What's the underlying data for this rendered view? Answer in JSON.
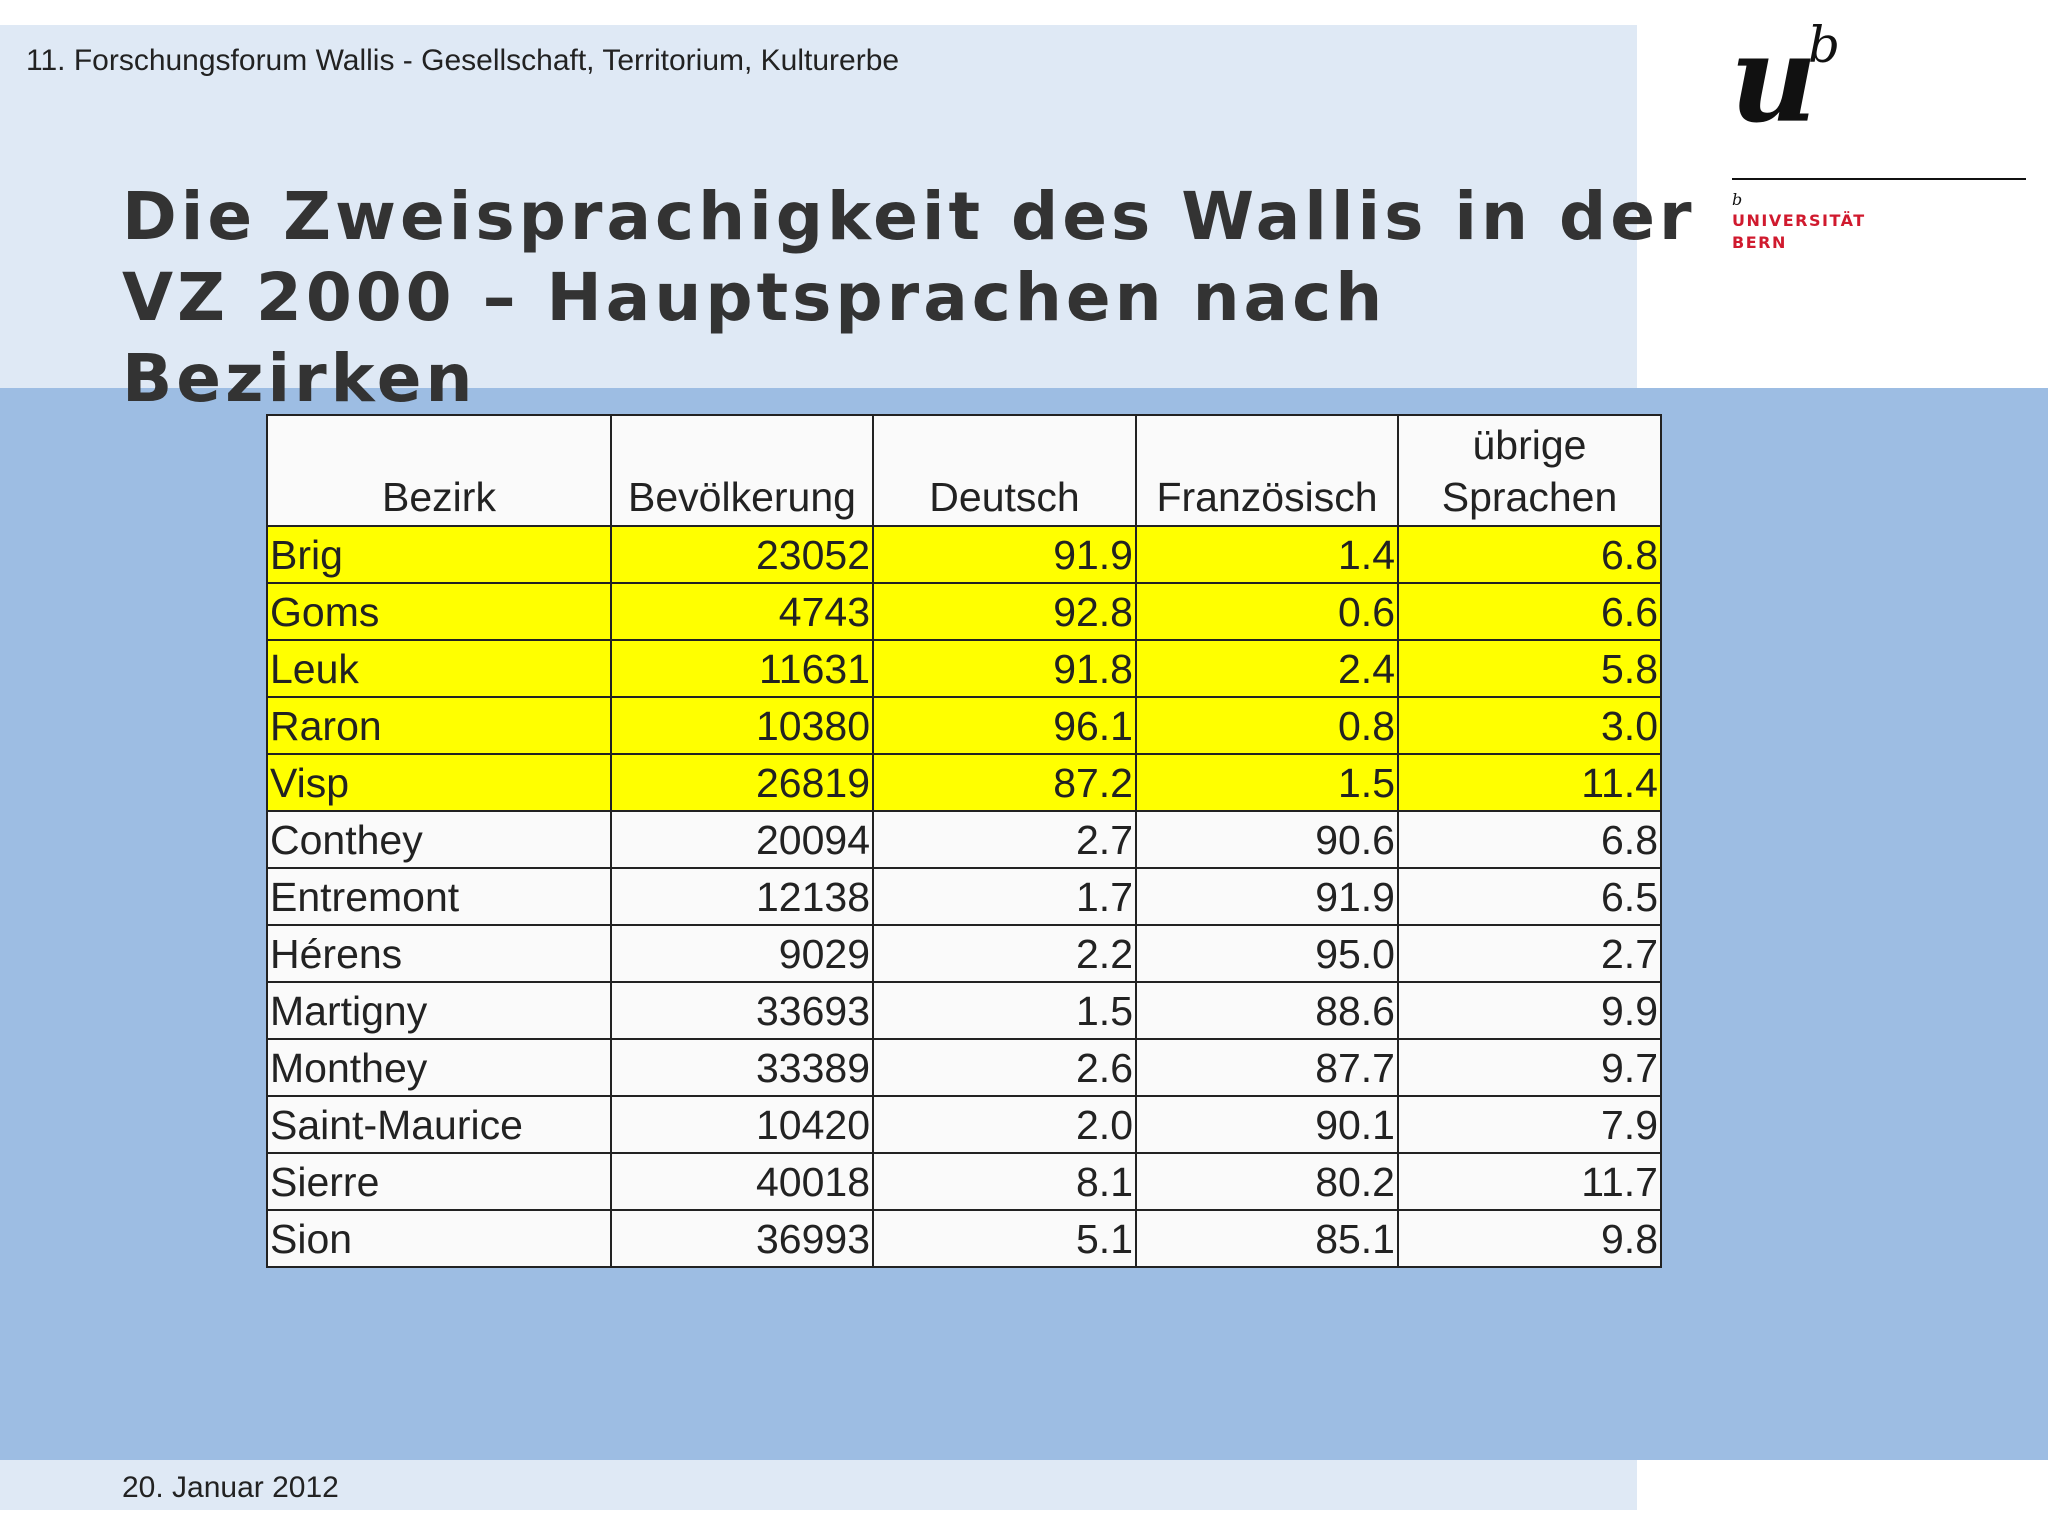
{
  "header": {
    "conference": "11. Forschungsforum Wallis - Gesellschaft, Territorium, Kulturerbe",
    "title_lines": [
      "Die Zweisprachigkeit des Wallis in der",
      "VZ 2000 – Hauptsprachen nach",
      "Bezirken"
    ]
  },
  "logo": {
    "mark_u": "u",
    "mark_b": "b",
    "small_b": "b",
    "line1": "UNIVERSITÄT",
    "line2": "BERN"
  },
  "table": {
    "columns": [
      "Bezirk",
      "Bevölkerung",
      "Deutsch",
      "Französisch",
      "übrige Sprachen"
    ],
    "column_line1": "übrige",
    "column_line2": "Sprachen",
    "rows": [
      {
        "bezirk": "Brig",
        "bevoelkerung": "23052",
        "deutsch": "91.9",
        "franzoesisch": "1.4",
        "uebrige": "6.8",
        "highlight": true
      },
      {
        "bezirk": "Goms",
        "bevoelkerung": "4743",
        "deutsch": "92.8",
        "franzoesisch": "0.6",
        "uebrige": "6.6",
        "highlight": true
      },
      {
        "bezirk": "Leuk",
        "bevoelkerung": "11631",
        "deutsch": "91.8",
        "franzoesisch": "2.4",
        "uebrige": "5.8",
        "highlight": true
      },
      {
        "bezirk": "Raron",
        "bevoelkerung": "10380",
        "deutsch": "96.1",
        "franzoesisch": "0.8",
        "uebrige": "3.0",
        "highlight": true
      },
      {
        "bezirk": "Visp",
        "bevoelkerung": "26819",
        "deutsch": "87.2",
        "franzoesisch": "1.5",
        "uebrige": "11.4",
        "highlight": true
      },
      {
        "bezirk": "Conthey",
        "bevoelkerung": "20094",
        "deutsch": "2.7",
        "franzoesisch": "90.6",
        "uebrige": "6.8",
        "highlight": false
      },
      {
        "bezirk": "Entremont",
        "bevoelkerung": "12138",
        "deutsch": "1.7",
        "franzoesisch": "91.9",
        "uebrige": "6.5",
        "highlight": false
      },
      {
        "bezirk": "Hérens",
        "bevoelkerung": "9029",
        "deutsch": "2.2",
        "franzoesisch": "95.0",
        "uebrige": "2.7",
        "highlight": false
      },
      {
        "bezirk": "Martigny",
        "bevoelkerung": "33693",
        "deutsch": "1.5",
        "franzoesisch": "88.6",
        "uebrige": "9.9",
        "highlight": false
      },
      {
        "bezirk": "Monthey",
        "bevoelkerung": "33389",
        "deutsch": "2.6",
        "franzoesisch": "87.7",
        "uebrige": "9.7",
        "highlight": false
      },
      {
        "bezirk": "Saint-Maurice",
        "bevoelkerung": "10420",
        "deutsch": "2.0",
        "franzoesisch": "90.1",
        "uebrige": "7.9",
        "highlight": false
      },
      {
        "bezirk": "Sierre",
        "bevoelkerung": "40018",
        "deutsch": "8.1",
        "franzoesisch": "80.2",
        "uebrige": "11.7",
        "highlight": false
      },
      {
        "bezirk": "Sion",
        "bevoelkerung": "36993",
        "deutsch": "5.1",
        "franzoesisch": "85.1",
        "uebrige": "9.8",
        "highlight": false
      }
    ]
  },
  "footer": {
    "date": "20. Januar 2012"
  },
  "colors": {
    "highlight": "#ffff00",
    "top_band": "#dfe9f5",
    "main_band": "#9dbde3",
    "logo_red": "#d01a2e"
  }
}
